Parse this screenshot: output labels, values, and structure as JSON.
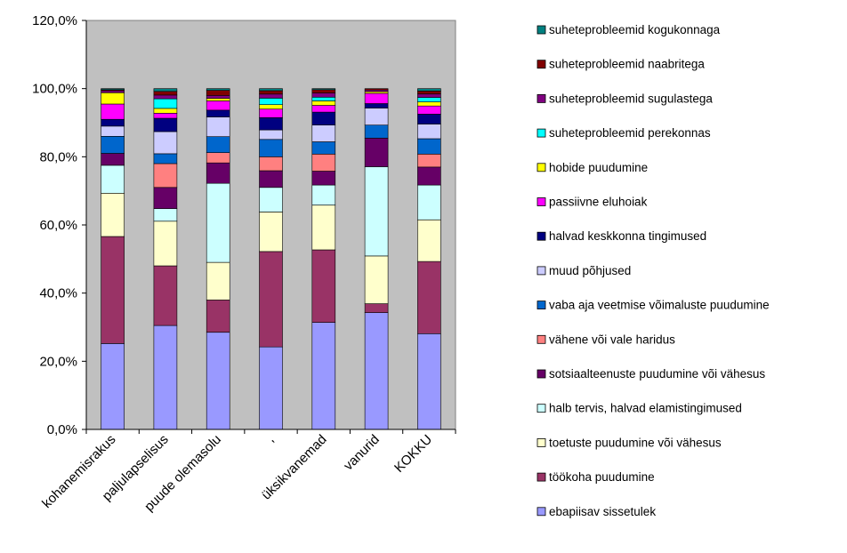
{
  "chart_data": {
    "type": "bar",
    "stacked": "percent",
    "title": "",
    "xlabel": "",
    "ylabel": "",
    "ylim": [
      0,
      120
    ],
    "yticks": [
      "0,0%",
      "20,0%",
      "40,0%",
      "60,0%",
      "80,0%",
      "100,0%",
      "120,0%"
    ],
    "plot_background": "#c0c0c0",
    "legend_position": "right",
    "categories": [
      "kohanemisrakus",
      "paljulapselisus",
      "puude olemasolu",
      ",",
      "üksikvanemad",
      "vanurid",
      "KOKKU"
    ],
    "series": [
      {
        "name": "ebapiisav sissetulek",
        "color": "#9999ff",
        "values": [
          25.2,
          30.5,
          28.5,
          24.2,
          31.4,
          34.3,
          28.1
        ]
      },
      {
        "name": "töökoha puudumine",
        "color": "#993366",
        "values": [
          31.4,
          17.5,
          9.5,
          28.0,
          21.3,
          2.6,
          21.2
        ]
      },
      {
        "name": "toetuste puudumine või vähesus",
        "color": "#ffffcc",
        "values": [
          12.7,
          13.1,
          11.0,
          11.6,
          13.1,
          14.0,
          12.2
        ]
      },
      {
        "name": "halb tervis, halvad elamistingimused",
        "color": "#ccffff",
        "values": [
          8.2,
          3.7,
          23.2,
          7.2,
          5.9,
          26.2,
          10.2
        ]
      },
      {
        "name": "sotsiaalteenuste puudumine või vähesus",
        "color": "#660066",
        "values": [
          3.5,
          6.2,
          6.0,
          4.9,
          4.1,
          8.4,
          5.3
        ]
      },
      {
        "name": "vähene või vale haridus",
        "color": "#ff8080",
        "values": [
          0.0,
          7.0,
          3.0,
          4.1,
          5.0,
          0.0,
          3.8
        ]
      },
      {
        "name": "vaba aja veetmise võimaluste puudumine",
        "color": "#0066cc",
        "values": [
          5.0,
          2.9,
          4.7,
          5.1,
          3.6,
          3.8,
          4.5
        ]
      },
      {
        "name": "muud põhjused",
        "color": "#ccccff",
        "values": [
          3.0,
          6.5,
          5.8,
          2.8,
          4.9,
          5.0,
          4.3
        ]
      },
      {
        "name": "halvad keskkonna tingimused",
        "color": "#000080",
        "values": [
          2.0,
          3.9,
          2.0,
          3.6,
          3.8,
          1.3,
          2.9
        ]
      },
      {
        "name": "passiivne eluhoiak",
        "color": "#ff00ff",
        "values": [
          4.5,
          1.5,
          2.7,
          2.5,
          2.0,
          3.0,
          2.4
        ]
      },
      {
        "name": "hobide puudumine",
        "color": "#ffff00",
        "values": [
          3.3,
          1.4,
          0.7,
          1.3,
          1.3,
          0.5,
          1.2
        ]
      },
      {
        "name": "suheteprobleemid perekonnas",
        "color": "#00ffff",
        "values": [
          0.0,
          2.8,
          0.0,
          1.9,
          1.1,
          0.0,
          1.3
        ]
      },
      {
        "name": "suheteprobleemid sugulastega",
        "color": "#800080",
        "values": [
          0.6,
          1.1,
          0.9,
          1.2,
          1.2,
          0.5,
          1.0
        ]
      },
      {
        "name": "suheteprobleemid naabritega",
        "color": "#800000",
        "values": [
          0.3,
          1.1,
          1.5,
          1.0,
          1.0,
          0.4,
          0.9
        ]
      },
      {
        "name": "suheteprobleemid kogukonnaga",
        "color": "#008080",
        "values": [
          0.3,
          0.8,
          0.5,
          0.6,
          0.3,
          0.0,
          0.7
        ]
      }
    ]
  }
}
